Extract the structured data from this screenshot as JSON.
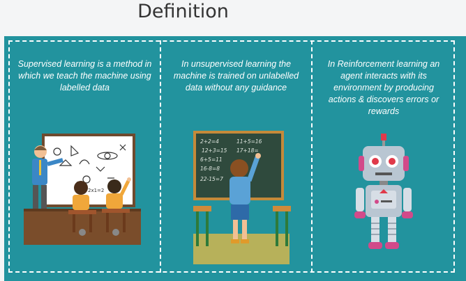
{
  "title": "Definition",
  "columns": [
    {
      "id": "supervised",
      "text": "Supervised learning is a method in which we teach the machine using labelled data",
      "illustration": "classroom-teacher-icon"
    },
    {
      "id": "unsupervised",
      "text": "In unsupervised learning the machine is trained on unlabelled data without any guidance",
      "illustration": "child-at-chalkboard-icon"
    },
    {
      "id": "reinforcement",
      "text": "In Reinforcement learning an agent interacts with its environment by producing actions & discovers errors or rewards",
      "illustration": "robot-icon"
    }
  ],
  "chalkboard_lines": [
    "2+2=4",
    "11+5=16",
    "12+3=15",
    "17+18=",
    "6+5=11",
    "16-8=8",
    "22-15=7"
  ],
  "whiteboard_text": "2x1=2",
  "colors": {
    "panel": "#22939e",
    "border": "#ffffff"
  }
}
